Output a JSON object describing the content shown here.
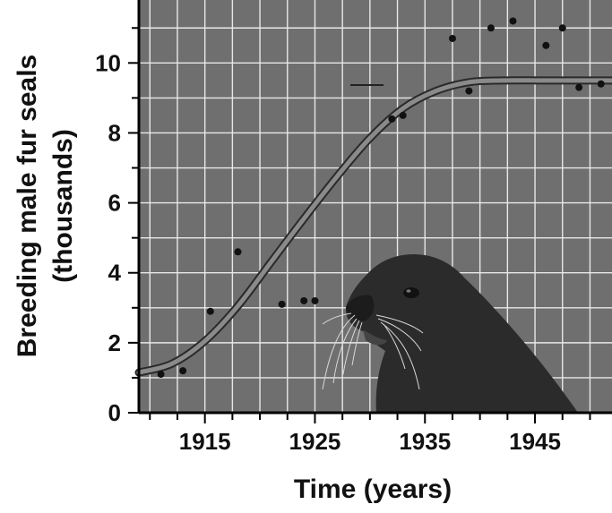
{
  "chart_data": {
    "type": "scatter",
    "ylabel_line1": "Breeding male fur seals",
    "ylabel_line2": "(thousands)",
    "xlabel": "Time (years)",
    "xlim": [
      1909,
      1952
    ],
    "ylim": [
      0,
      11.8
    ],
    "grid": true,
    "x_ticks": [
      1915,
      1925,
      1935,
      1945
    ],
    "y_ticks": [
      0,
      2,
      4,
      6,
      8,
      10
    ],
    "colors": {
      "plot_bg": "#6f6f6f",
      "grid": "#e8e8e8",
      "curve": "#8a8a8a",
      "curve_edge": "#2a2a2a",
      "points": "#111111",
      "seal": "#2b2b2b"
    },
    "series": [
      {
        "type": "scatter",
        "points": [
          {
            "x": 1911,
            "y": 1.1
          },
          {
            "x": 1913,
            "y": 1.2
          },
          {
            "x": 1915.5,
            "y": 2.9
          },
          {
            "x": 1918,
            "y": 4.6
          },
          {
            "x": 1922,
            "y": 3.1
          },
          {
            "x": 1924,
            "y": 3.2
          },
          {
            "x": 1925,
            "y": 3.2
          },
          {
            "x": 1932,
            "y": 8.4
          },
          {
            "x": 1933,
            "y": 8.5
          },
          {
            "x": 1937.5,
            "y": 10.7
          },
          {
            "x": 1939,
            "y": 9.2
          },
          {
            "x": 1941,
            "y": 11.0
          },
          {
            "x": 1943,
            "y": 11.2
          },
          {
            "x": 1946,
            "y": 10.5
          },
          {
            "x": 1947.5,
            "y": 11.0
          },
          {
            "x": 1949,
            "y": 9.3
          },
          {
            "x": 1951,
            "y": 9.4
          }
        ]
      },
      {
        "type": "line",
        "style": "logistic curve",
        "points": [
          {
            "x": 1909,
            "y": 1.15
          },
          {
            "x": 1912,
            "y": 1.4
          },
          {
            "x": 1915,
            "y": 2.05
          },
          {
            "x": 1918,
            "y": 3.05
          },
          {
            "x": 1921,
            "y": 4.3
          },
          {
            "x": 1924,
            "y": 5.55
          },
          {
            "x": 1927,
            "y": 6.75
          },
          {
            "x": 1930,
            "y": 7.85
          },
          {
            "x": 1933,
            "y": 8.7
          },
          {
            "x": 1936,
            "y": 9.2
          },
          {
            "x": 1939,
            "y": 9.45
          },
          {
            "x": 1942,
            "y": 9.5
          },
          {
            "x": 1946,
            "y": 9.5
          },
          {
            "x": 1952,
            "y": 9.5
          }
        ]
      }
    ]
  }
}
